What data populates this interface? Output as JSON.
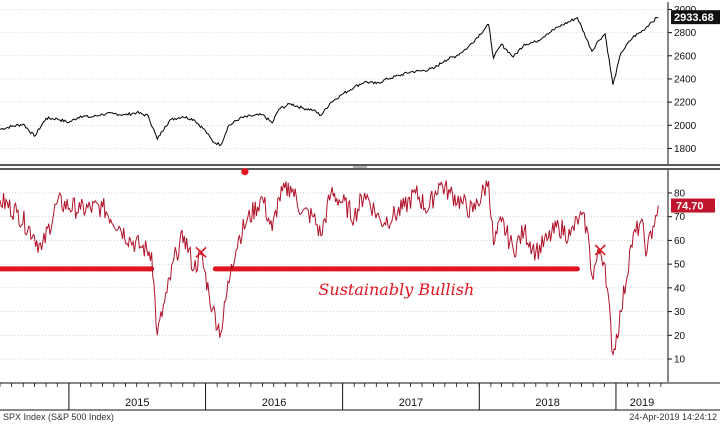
{
  "colors": {
    "price_line": "#000000",
    "breadth_line": "#b0122a",
    "annotation": "#e0151f",
    "last_price_bg": "#111111",
    "last_breadth_bg": "#c0142d",
    "grid": "#bdbdbd",
    "divider": "#222222"
  },
  "chart_data": [
    {
      "type": "line",
      "series": [
        {
          "name": "",
          "x": [
            "2014-07-01",
            "2014-08-01",
            "2014-09-01",
            "2014-10-01",
            "2014-11-01",
            "2014-12-01",
            "2015-01-01",
            "2015-02-01",
            "2015-03-01",
            "2015-04-01",
            "2015-05-01",
            "2015-06-01",
            "2015-07-01",
            "2015-08-01",
            "2015-08-25",
            "2015-09-15",
            "2015-10-01",
            "2015-11-01",
            "2015-12-01",
            "2016-01-01",
            "2016-01-20",
            "2016-02-11",
            "2016-03-01",
            "2016-04-01",
            "2016-05-01",
            "2016-06-01",
            "2016-06-27",
            "2016-07-15",
            "2016-08-15",
            "2016-09-15",
            "2016-10-15",
            "2016-11-04",
            "2016-12-01",
            "2017-01-01",
            "2017-02-01",
            "2017-03-01",
            "2017-04-01",
            "2017-05-01",
            "2017-06-01",
            "2017-07-01",
            "2017-08-01",
            "2017-09-01",
            "2017-10-01",
            "2017-11-01",
            "2017-12-01",
            "2018-01-26",
            "2018-02-08",
            "2018-03-01",
            "2018-04-02",
            "2018-05-01",
            "2018-06-01",
            "2018-07-01",
            "2018-08-01",
            "2018-09-20",
            "2018-10-29",
            "2018-11-15",
            "2018-12-03",
            "2018-12-24",
            "2019-01-15",
            "2019-02-15",
            "2019-03-15",
            "2019-04-05",
            "2019-04-24"
          ],
          "values": [
            1965,
            1990,
            2010,
            1905,
            2060,
            2055,
            2025,
            2080,
            2070,
            2095,
            2100,
            2090,
            2110,
            2080,
            1880,
            1990,
            2050,
            2075,
            2050,
            1950,
            1860,
            1830,
            1990,
            2060,
            2080,
            2090,
            2020,
            2140,
            2185,
            2150,
            2130,
            2085,
            2200,
            2270,
            2330,
            2375,
            2360,
            2400,
            2430,
            2460,
            2470,
            2490,
            2560,
            2600,
            2670,
            2870,
            2580,
            2700,
            2590,
            2700,
            2720,
            2790,
            2850,
            2930,
            2640,
            2730,
            2790,
            2350,
            2630,
            2760,
            2820,
            2890,
            2933.68
          ]
        }
      ],
      "yticks": [
        1800,
        2000,
        2200,
        2400,
        2600,
        2800,
        3000
      ],
      "ylim": [
        1700,
        3030
      ],
      "last_value_label": "2933.68"
    },
    {
      "type": "line",
      "series": [
        {
          "name": "",
          "x": [
            "2014-07-01",
            "2014-08-15",
            "2014-10-01",
            "2014-10-20",
            "2014-12-01",
            "2015-02-01",
            "2015-04-01",
            "2015-05-15",
            "2015-06-15",
            "2015-07-15",
            "2015-08-10",
            "2015-08-25",
            "2015-09-20",
            "2015-10-15",
            "2015-11-05",
            "2015-12-01",
            "2015-12-20",
            "2016-01-10",
            "2016-01-20",
            "2016-02-11",
            "2016-03-10",
            "2016-04-01",
            "2016-04-20",
            "2016-06-01",
            "2016-06-27",
            "2016-07-15",
            "2016-08-15",
            "2016-09-15",
            "2016-10-15",
            "2016-11-04",
            "2016-12-01",
            "2017-01-01",
            "2017-02-01",
            "2017-03-01",
            "2017-04-13",
            "2017-05-15",
            "2017-06-15",
            "2017-07-15",
            "2017-08-18",
            "2017-09-15",
            "2017-10-15",
            "2017-11-15",
            "2017-12-15",
            "2018-01-26",
            "2018-02-08",
            "2018-03-01",
            "2018-04-02",
            "2018-05-01",
            "2018-06-01",
            "2018-07-01",
            "2018-08-01",
            "2018-09-01",
            "2018-09-25",
            "2018-10-15",
            "2018-10-29",
            "2018-11-20",
            "2018-12-03",
            "2018-12-24",
            "2019-01-15",
            "2019-02-10",
            "2019-03-08",
            "2019-03-25",
            "2019-04-10",
            "2019-04-24"
          ],
          "values": [
            77,
            72,
            62,
            56,
            76,
            73,
            74,
            66,
            60,
            57,
            55,
            20,
            38,
            55,
            62,
            48,
            54,
            38,
            31,
            21,
            50,
            62,
            68,
            78,
            64,
            78,
            83,
            72,
            70,
            62,
            80,
            76,
            70,
            80,
            68,
            70,
            74,
            80,
            73,
            84,
            80,
            76,
            72,
            85,
            58,
            68,
            56,
            64,
            55,
            60,
            66,
            62,
            70,
            66,
            45,
            56,
            50,
            12,
            30,
            58,
            68,
            55,
            66,
            74.7
          ]
        }
      ],
      "yticks": [
        10,
        20,
        30,
        40,
        50,
        60,
        70,
        80
      ],
      "ylim": [
        2,
        88
      ],
      "last_value_label": "74.70",
      "threshold": 48,
      "segments": [
        {
          "x": [
            "2014-07-01",
            "2015-08-10"
          ],
          "y": 48
        },
        {
          "x": [
            "2016-01-27",
            "2018-09-20"
          ],
          "y": 48
        }
      ],
      "annotation_text": "Sustainably Bullish",
      "markers": [
        {
          "type": "x",
          "date": "2015-12-20",
          "value": 55
        },
        {
          "type": "dot",
          "date": "2016-04-15",
          "value": 89
        },
        {
          "type": "x",
          "date": "2018-11-20",
          "value": 56
        }
      ]
    }
  ],
  "x_axis": {
    "year_labels": [
      "2015",
      "2016",
      "2017",
      "2018",
      "2019"
    ],
    "year_starts": [
      "2015-01-01",
      "2016-01-01",
      "2017-01-01",
      "2018-01-01",
      "2019-01-01"
    ],
    "range": [
      "2014-07-01",
      "2019-05-20"
    ]
  },
  "footer": {
    "left": "SPX Index (S&P 500 Index)",
    "right": "24-Apr-2019 14:24:12"
  }
}
